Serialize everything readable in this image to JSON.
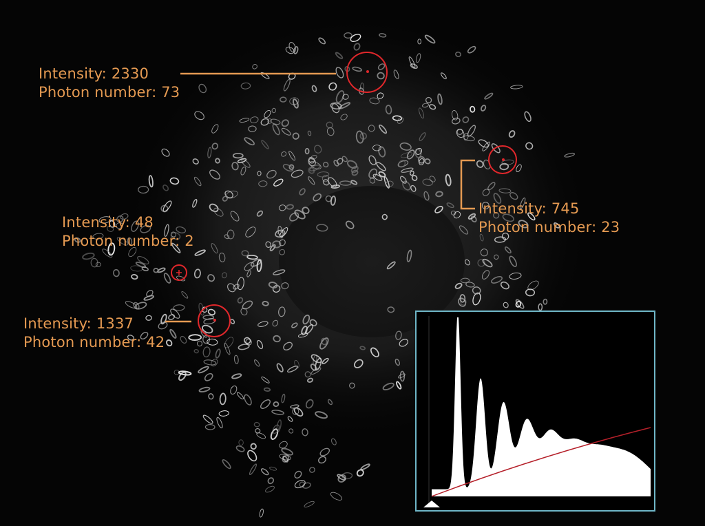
{
  "scene": {
    "description_colors": {
      "background": "#050505",
      "cell": "#d8d8d8",
      "annotation": "#e59a52",
      "marker": "#e0272b",
      "inset_border": "#6fb6c7"
    }
  },
  "annotations": [
    {
      "id": "a1",
      "intensity": "Intensity: 2330",
      "photons": "Photon number: 73"
    },
    {
      "id": "a2",
      "intensity": "Intensity: 745",
      "photons": "Photon number: 23"
    },
    {
      "id": "a3",
      "intensity": "Intensity: 48",
      "photons": "Photon number: 2"
    },
    {
      "id": "a4",
      "intensity": "Intensity: 1337",
      "photons": "Photon number: 42"
    }
  ],
  "histogram": {
    "fill_color": "#ffffff",
    "curve_color": "#b5202a",
    "peaks": [
      1.0,
      0.62,
      0.48,
      0.37,
      0.29,
      0.22,
      0.17,
      0.14,
      0.12
    ]
  }
}
